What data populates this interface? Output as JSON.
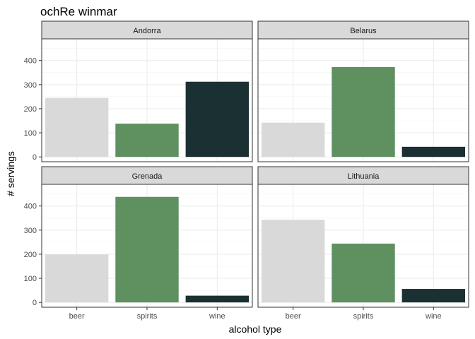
{
  "chart_data": {
    "type": "bar",
    "title": "ochRe winmar",
    "xlabel": "alcohol type",
    "ylabel": "# servings",
    "ylim": [
      -20,
      490
    ],
    "yticks": [
      0,
      100,
      200,
      300,
      400
    ],
    "categories": [
      "beer",
      "spirits",
      "wine"
    ],
    "category_colors": {
      "beer": "#d9d9d9",
      "spirits": "#5e9060",
      "wine": "#1b3033"
    },
    "grid": true,
    "legend": "none",
    "facets": [
      {
        "name": "Andorra",
        "values": [
          245,
          138,
          312
        ]
      },
      {
        "name": "Belarus",
        "values": [
          142,
          373,
          42
        ]
      },
      {
        "name": "Grenada",
        "values": [
          199,
          438,
          28
        ]
      },
      {
        "name": "Lithuania",
        "values": [
          343,
          244,
          56
        ]
      }
    ]
  }
}
